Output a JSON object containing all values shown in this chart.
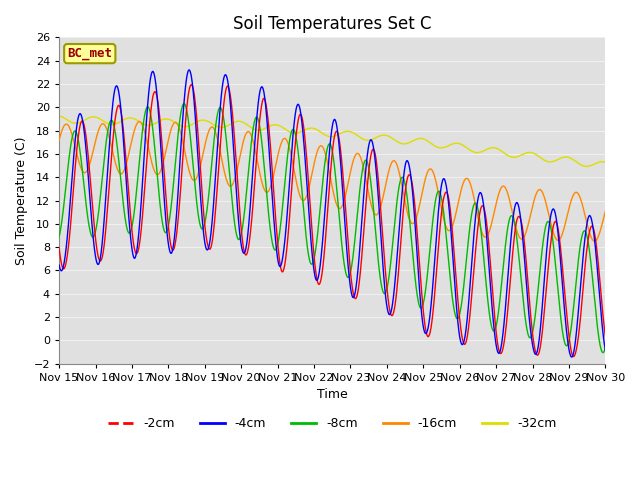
{
  "title": "Soil Temperatures Set C",
  "xlabel": "Time",
  "ylabel": "Soil Temperature (C)",
  "ylim": [
    -2,
    26
  ],
  "xlim": [
    0,
    15
  ],
  "x_tick_labels": [
    "Nov 15",
    "Nov 16",
    "Nov 17",
    "Nov 18",
    "Nov 19",
    "Nov 20",
    "Nov 21",
    "Nov 22",
    "Nov 23",
    "Nov 24",
    "Nov 25",
    "Nov 26",
    "Nov 27",
    "Nov 28",
    "Nov 29",
    "Nov 30"
  ],
  "legend_labels": [
    "-2cm",
    "-4cm",
    "-8cm",
    "-16cm",
    "-32cm"
  ],
  "legend_colors": [
    "#ff0000",
    "#0000ff",
    "#00bb00",
    "#ff8800",
    "#dddd00"
  ],
  "bc_met_label": "BC_met",
  "bc_met_bg": "#ffff99",
  "bc_met_border": "#999900",
  "bc_met_text_color": "#990000",
  "fig_bg_color": "#ffffff",
  "plot_bg_color": "#e0e0e0",
  "grid_color": "#f0f0f0",
  "line_width": 1.0,
  "title_fontsize": 12,
  "axis_label_fontsize": 9,
  "tick_fontsize": 8
}
